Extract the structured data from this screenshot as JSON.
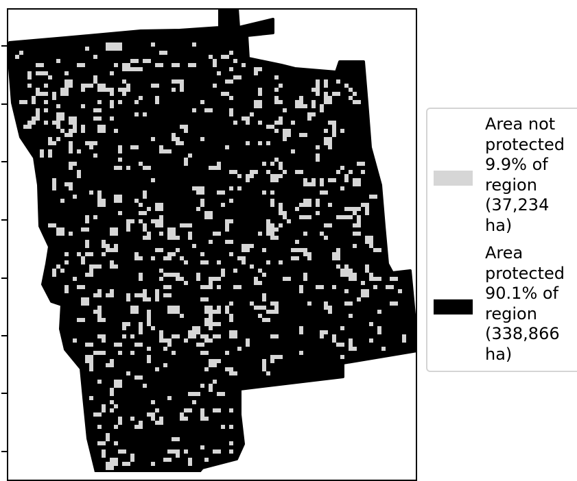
{
  "map": {
    "title": "",
    "fill_color": "#000000",
    "gap_color": "#d6d6d6",
    "outline_color": "#000000"
  },
  "legend": {
    "entries": [
      {
        "text": "Area not\nprotected\n9.9% of\nregion\n(37,234\nha)",
        "color": "#d6d6d6"
      },
      {
        "text": "Area\nprotected\n90.1% of\nregion\n(338,866\nha)",
        "color": "#000000"
      }
    ]
  },
  "stats": {
    "not_protected_pct": 9.9,
    "not_protected_ha": 37234,
    "protected_pct": 90.1,
    "protected_ha": 338866
  }
}
